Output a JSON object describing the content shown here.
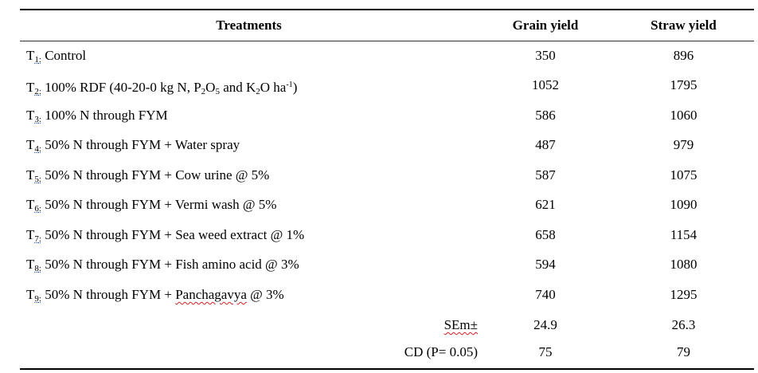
{
  "headers": {
    "treatments": "Treatments",
    "grain_yield": "Grain yield",
    "straw_yield": "Straw yield"
  },
  "rows": [
    {
      "code": "T",
      "num": "1",
      "sep": ": ",
      "desc": "Control",
      "grain": "350",
      "straw": "896"
    },
    {
      "code": "T",
      "num": "2",
      "sep": ": ",
      "desc": "100% RDF (40-20-0 kg N, P",
      "grain": "1052",
      "straw": "1795"
    },
    {
      "code": "T",
      "num": "3",
      "sep": ": ",
      "desc": "100% N through FYM",
      "grain": "586",
      "straw": "1060"
    },
    {
      "code": "T",
      "num": "4",
      "sep": ": ",
      "desc": "50% N through FYM + Water spray",
      "grain": "487",
      "straw": "979"
    },
    {
      "code": "T",
      "num": "5",
      "sep": ": ",
      "desc": "50% N through FYM + Cow urine @ 5%",
      "grain": "587",
      "straw": "1075"
    },
    {
      "code": "T",
      "num": "6",
      "sep": ": ",
      "desc": "50% N through FYM + Vermi wash @ 5%",
      "grain": "621",
      "straw": "1090"
    },
    {
      "code": "T",
      "num": "7",
      "sep": ": ",
      "desc": "50% N through FYM + Sea weed extract @ 1%",
      "grain": "658",
      "straw": "1154"
    },
    {
      "code": "T",
      "num": "8",
      "sep": ": ",
      "desc": "50% N through FYM + Fish amino acid @ 3%",
      "grain": "594",
      "straw": "1080"
    },
    {
      "code": "T",
      "num": "9",
      "sep": ": ",
      "desc": "50% N through FYM + ",
      "grain": "740",
      "straw": "1295"
    }
  ],
  "row2_parts": {
    "sub5": "5",
    "and": " and K",
    "k_sub": "2",
    "o_ha": "O ha",
    "sup": "-1",
    "close": ")",
    "p_sub": "2",
    "o": "O"
  },
  "row9_word": "Panchagavya",
  "row9_tail": " @ 3%",
  "stats": [
    {
      "label": "SEm±",
      "grain": "24.9",
      "straw": "26.3"
    },
    {
      "label": "CD (P= 0.05)",
      "grain": "75",
      "straw": "79"
    }
  ]
}
